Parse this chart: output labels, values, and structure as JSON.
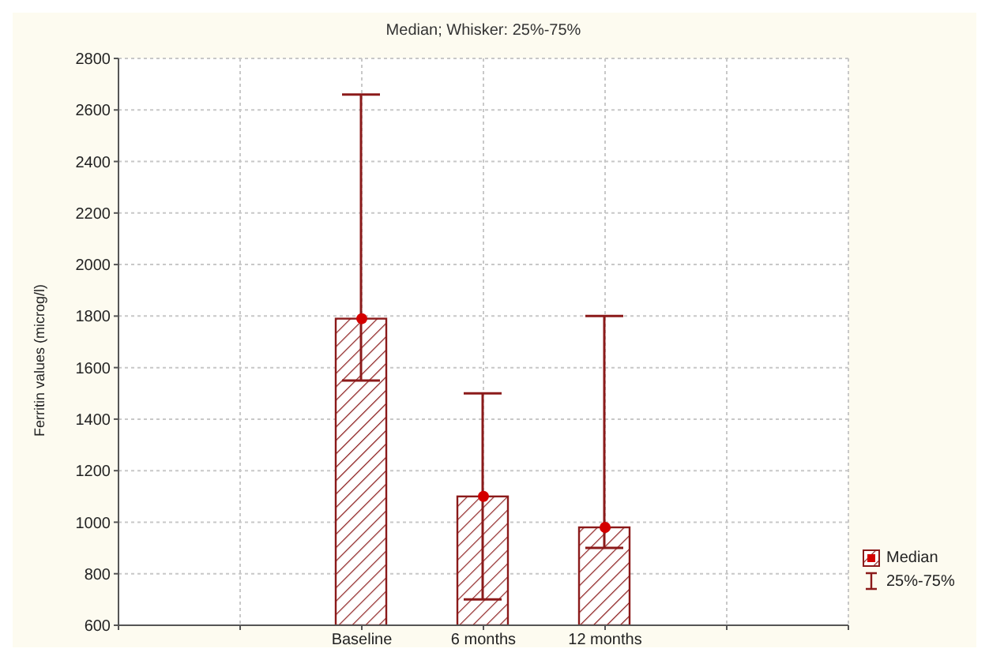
{
  "chart_data": {
    "type": "bar",
    "title": "Median; Whisker: 25%-75%",
    "ylabel": "Ferritin values (microg/l)",
    "categories": [
      null,
      null,
      "Baseline",
      "6 months",
      "12 months",
      null,
      null
    ],
    "series": [
      {
        "name": "Median",
        "color": "#8b1a1a",
        "values": [
          null,
          null,
          1790,
          1100,
          980,
          null,
          null
        ],
        "errors": [
          null,
          null,
          [
            1550,
            2660
          ],
          [
            700,
            1500
          ],
          [
            900,
            1800
          ],
          null,
          null
        ]
      },
      {
        "type": "scatter",
        "color": "#d40000",
        "values": [
          null,
          null,
          1790,
          1100,
          980,
          null,
          null
        ]
      }
    ],
    "annotations": [
      "25%-75%"
    ],
    "ylim": [
      600,
      2800
    ],
    "yticks": [
      600,
      800,
      1000,
      1200,
      1400,
      1600,
      1800,
      2000,
      2200,
      2400,
      2600,
      2800
    ],
    "grid": true,
    "legend": "bottom right",
    "marker": "circle"
  }
}
